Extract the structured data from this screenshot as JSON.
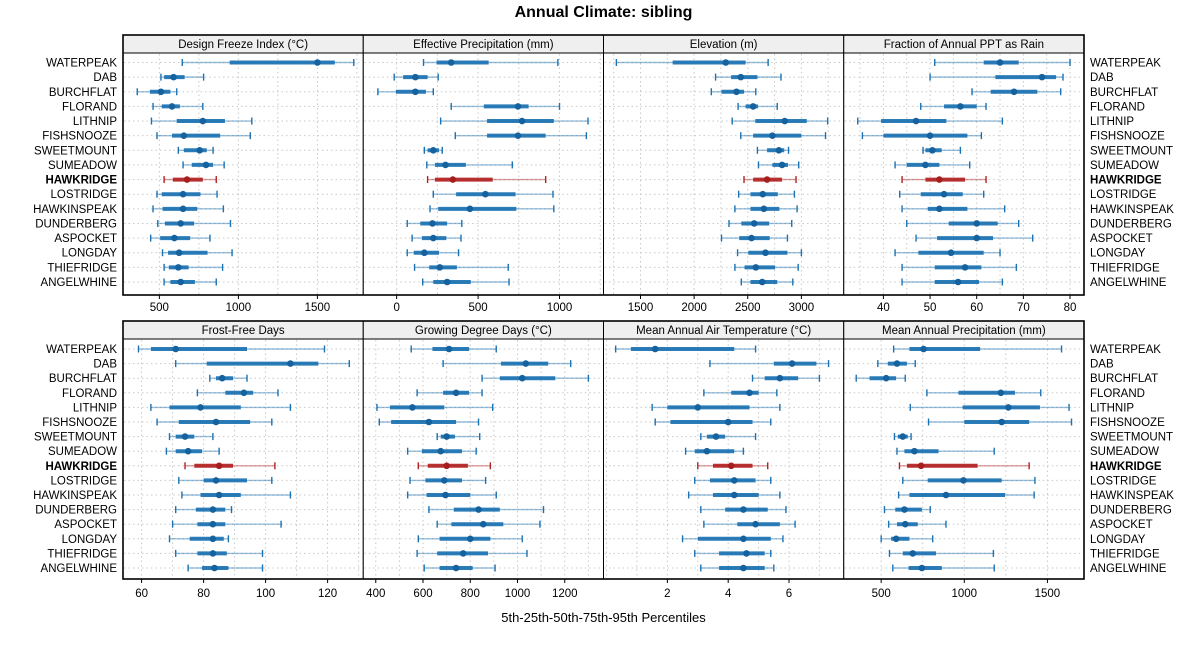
{
  "title": "Annual Climate: sibling",
  "caption": "5th-25th-50th-75th-95th Percentiles",
  "sites": [
    "WATERPEAK",
    "DAB",
    "BURCHFLAT",
    "FLORAND",
    "LITHNIP",
    "FISHSNOOZE",
    "SWEETMOUNT",
    "SUMEADOW",
    "HAWKRIDGE",
    "LOSTRIDGE",
    "HAWKINSPEAK",
    "DUNDERBERG",
    "ASPOCKET",
    "LONGDAY",
    "THIEFRIDGE",
    "ANGELWHINE"
  ],
  "highlight_site": "HAWKRIDGE",
  "colors": {
    "series_main": "#1b72b2",
    "series_light": "rgba(27,114,178,0.45)",
    "series_dot": "#15629e",
    "highlight_main": "#b22222",
    "highlight_light": "rgba(178,34,34,0.45)",
    "highlight_dot": "#a51f1f",
    "strip_bg": "#efefef",
    "grid": "#c9c9c9",
    "border": "#000000",
    "text": "#000000"
  },
  "chart_data": {
    "type": "dotplot-percentiles",
    "percentiles": [
      5,
      25,
      50,
      75,
      95
    ],
    "panels": [
      {
        "label": "Design Freeze Index (°C)",
        "row": 0,
        "col": 0,
        "domain": [
          270,
          1790
        ],
        "ticks": [
          500,
          1000,
          1500
        ],
        "values": [
          [
            645,
            945,
            1500,
            1610,
            1730
          ],
          [
            510,
            530,
            590,
            660,
            780
          ],
          [
            360,
            440,
            510,
            570,
            610
          ],
          [
            460,
            515,
            580,
            630,
            775
          ],
          [
            450,
            610,
            775,
            915,
            1085
          ],
          [
            485,
            580,
            655,
            885,
            1075
          ],
          [
            620,
            655,
            755,
            800,
            840
          ],
          [
            650,
            705,
            795,
            840,
            910
          ],
          [
            530,
            585,
            675,
            775,
            860
          ],
          [
            485,
            515,
            650,
            760,
            865
          ],
          [
            460,
            520,
            650,
            740,
            905
          ],
          [
            490,
            535,
            635,
            720,
            950
          ],
          [
            445,
            505,
            595,
            695,
            820
          ],
          [
            520,
            555,
            625,
            805,
            960
          ],
          [
            530,
            560,
            620,
            685,
            900
          ],
          [
            530,
            570,
            635,
            725,
            860
          ]
        ]
      },
      {
        "label": "Effective Precipitation (mm)",
        "row": 0,
        "col": 1,
        "domain": [
          -205,
          1270
        ],
        "ticks": [
          0,
          500,
          1000
        ],
        "values": [
          [
            165,
            245,
            335,
            565,
            990
          ],
          [
            -15,
            40,
            115,
            190,
            255
          ],
          [
            -115,
            -5,
            115,
            180,
            225
          ],
          [
            335,
            535,
            745,
            810,
            1000
          ],
          [
            270,
            555,
            770,
            965,
            1175
          ],
          [
            360,
            555,
            745,
            915,
            1165
          ],
          [
            170,
            190,
            225,
            260,
            280
          ],
          [
            185,
            235,
            300,
            425,
            710
          ],
          [
            190,
            235,
            345,
            590,
            915
          ],
          [
            225,
            365,
            545,
            730,
            960
          ],
          [
            205,
            255,
            450,
            735,
            965
          ],
          [
            65,
            145,
            220,
            310,
            400
          ],
          [
            95,
            155,
            225,
            305,
            395
          ],
          [
            65,
            105,
            170,
            260,
            380
          ],
          [
            110,
            200,
            265,
            370,
            685
          ],
          [
            160,
            225,
            310,
            455,
            690
          ]
        ]
      },
      {
        "label": "Elevation (m)",
        "row": 0,
        "col": 2,
        "domain": [
          1155,
          3395
        ],
        "ticks": [
          1500,
          2000,
          2500,
          3000
        ],
        "values": [
          [
            1275,
            1800,
            2295,
            2480,
            2690
          ],
          [
            2200,
            2345,
            2435,
            2590,
            2810
          ],
          [
            2160,
            2255,
            2395,
            2465,
            2575
          ],
          [
            2410,
            2480,
            2550,
            2595,
            2775
          ],
          [
            2355,
            2570,
            2845,
            3050,
            3245
          ],
          [
            2435,
            2550,
            2730,
            3000,
            3225
          ],
          [
            2590,
            2680,
            2790,
            2840,
            2880
          ],
          [
            2600,
            2730,
            2820,
            2875,
            2975
          ],
          [
            2465,
            2550,
            2680,
            2820,
            2950
          ],
          [
            2415,
            2525,
            2640,
            2780,
            2935
          ],
          [
            2380,
            2525,
            2650,
            2795,
            2960
          ],
          [
            2325,
            2440,
            2560,
            2700,
            2910
          ],
          [
            2255,
            2420,
            2535,
            2705,
            2870
          ],
          [
            2405,
            2505,
            2665,
            2870,
            3000
          ],
          [
            2380,
            2470,
            2575,
            2755,
            2970
          ],
          [
            2440,
            2525,
            2635,
            2775,
            2920
          ]
        ]
      },
      {
        "label": "Fraction of Annual PPT as Rain",
        "row": 0,
        "col": 3,
        "domain": [
          31.5,
          83
        ],
        "ticks": [
          40,
          50,
          60,
          70,
          80
        ],
        "values": [
          [
            51,
            61.5,
            65,
            69,
            80
          ],
          [
            50,
            64,
            74,
            77,
            78.5
          ],
          [
            59,
            63,
            68,
            73,
            78
          ],
          [
            48,
            53,
            56.5,
            60,
            62
          ],
          [
            34.5,
            39.5,
            47,
            53.5,
            65.5
          ],
          [
            35.5,
            40,
            50,
            58,
            61
          ],
          [
            48.5,
            49,
            50.5,
            52.5,
            56.5
          ],
          [
            42.5,
            45,
            49,
            52,
            58.5
          ],
          [
            44,
            49,
            52,
            57.5,
            62
          ],
          [
            43.5,
            48,
            53,
            57,
            61.5
          ],
          [
            44,
            49.5,
            52,
            58,
            66
          ],
          [
            45,
            54,
            60,
            64.5,
            69
          ],
          [
            47,
            51.5,
            60,
            63.5,
            72
          ],
          [
            42.5,
            47.5,
            54.5,
            61.5,
            65
          ],
          [
            44,
            51,
            57.5,
            61,
            68.5
          ],
          [
            44,
            51,
            56,
            60.5,
            65.5
          ]
        ]
      },
      {
        "label": "Frost-Free Days",
        "row": 1,
        "col": 0,
        "domain": [
          54,
          131.5
        ],
        "ticks": [
          60,
          80,
          100,
          120
        ],
        "values": [
          [
            59,
            63,
            71,
            94,
            119
          ],
          [
            71,
            81,
            108,
            117,
            127
          ],
          [
            82,
            84,
            86,
            89.5,
            94
          ],
          [
            78,
            87,
            93,
            96,
            104
          ],
          [
            63,
            69,
            79,
            92,
            108
          ],
          [
            65,
            72,
            84,
            95,
            102
          ],
          [
            69,
            71,
            74,
            77,
            83
          ],
          [
            68,
            71,
            75,
            79.5,
            85
          ],
          [
            74,
            77,
            85,
            89.5,
            103
          ],
          [
            72,
            80,
            84,
            94,
            102
          ],
          [
            73,
            79,
            85,
            92,
            108
          ],
          [
            71,
            77.5,
            83,
            87,
            89
          ],
          [
            70,
            78,
            83,
            87,
            105
          ],
          [
            69,
            75.5,
            83,
            86.5,
            88
          ],
          [
            71,
            78,
            83,
            87.5,
            99
          ],
          [
            75,
            79.5,
            83.5,
            88,
            99
          ]
        ]
      },
      {
        "label": "Growing Degree Days (°C)",
        "row": 1,
        "col": 1,
        "domain": [
          347,
          1364
        ],
        "ticks": [
          400,
          600,
          800,
          1000,
          1200
        ],
        "values": [
          [
            550,
            640,
            710,
            795,
            910
          ],
          [
            685,
            930,
            1035,
            1130,
            1225
          ],
          [
            850,
            925,
            1020,
            1160,
            1300
          ],
          [
            575,
            685,
            740,
            795,
            850
          ],
          [
            405,
            460,
            555,
            690,
            895
          ],
          [
            415,
            465,
            625,
            740,
            835
          ],
          [
            660,
            675,
            700,
            735,
            840
          ],
          [
            535,
            595,
            675,
            765,
            825
          ],
          [
            580,
            620,
            700,
            790,
            885
          ],
          [
            545,
            610,
            690,
            765,
            865
          ],
          [
            535,
            615,
            695,
            800,
            910
          ],
          [
            625,
            730,
            835,
            925,
            1110
          ],
          [
            660,
            720,
            855,
            940,
            1095
          ],
          [
            580,
            670,
            800,
            885,
            1020
          ],
          [
            575,
            660,
            770,
            875,
            1040
          ],
          [
            605,
            670,
            740,
            810,
            905
          ]
        ]
      },
      {
        "label": "Mean Annual Air Temperature (°C)",
        "row": 1,
        "col": 2,
        "domain": [
          -0.1,
          7.8
        ],
        "ticks": [
          2,
          4,
          6
        ],
        "values": [
          [
            0.3,
            0.8,
            1.6,
            4.2,
            4.9
          ],
          [
            3.4,
            5.5,
            6.1,
            6.9,
            7.3
          ],
          [
            4.8,
            5.2,
            5.7,
            6.3,
            7.0
          ],
          [
            3.2,
            4.1,
            4.7,
            5.0,
            5.6
          ],
          [
            1.5,
            2.0,
            3.0,
            4.7,
            5.7
          ],
          [
            1.6,
            2.1,
            4.0,
            4.8,
            5.4
          ],
          [
            3.1,
            3.3,
            3.6,
            3.9,
            4.9
          ],
          [
            2.6,
            2.9,
            3.3,
            4.2,
            4.5
          ],
          [
            3.0,
            3.5,
            4.1,
            4.8,
            5.3
          ],
          [
            2.9,
            3.4,
            4.2,
            4.9,
            5.4
          ],
          [
            2.7,
            3.5,
            4.2,
            5.0,
            5.7
          ],
          [
            3.1,
            3.9,
            4.5,
            5.3,
            5.9
          ],
          [
            3.2,
            4.3,
            4.9,
            5.7,
            6.2
          ],
          [
            2.5,
            3.0,
            4.5,
            5.4,
            5.8
          ],
          [
            2.9,
            3.7,
            4.6,
            5.2,
            5.4
          ],
          [
            3.1,
            3.7,
            4.5,
            5.2,
            5.5
          ]
        ]
      },
      {
        "label": "Mean Annual Precipitation (mm)",
        "row": 1,
        "col": 3,
        "domain": [
          275,
          1720
        ],
        "ticks": [
          500,
          1000,
          1500
        ],
        "values": [
          [
            575,
            670,
            755,
            1095,
            1585
          ],
          [
            480,
            540,
            595,
            655,
            705
          ],
          [
            350,
            430,
            530,
            590,
            645
          ],
          [
            775,
            965,
            1220,
            1305,
            1460
          ],
          [
            675,
            990,
            1265,
            1455,
            1630
          ],
          [
            785,
            1000,
            1225,
            1390,
            1645
          ],
          [
            580,
            600,
            630,
            660,
            680
          ],
          [
            595,
            640,
            700,
            845,
            1180
          ],
          [
            610,
            655,
            740,
            1080,
            1390
          ],
          [
            630,
            780,
            995,
            1225,
            1425
          ],
          [
            605,
            670,
            890,
            1245,
            1420
          ],
          [
            520,
            585,
            640,
            745,
            795
          ],
          [
            545,
            595,
            645,
            720,
            890
          ],
          [
            500,
            560,
            590,
            670,
            810
          ],
          [
            550,
            630,
            690,
            830,
            1175
          ],
          [
            570,
            665,
            745,
            865,
            1180
          ]
        ]
      }
    ]
  }
}
